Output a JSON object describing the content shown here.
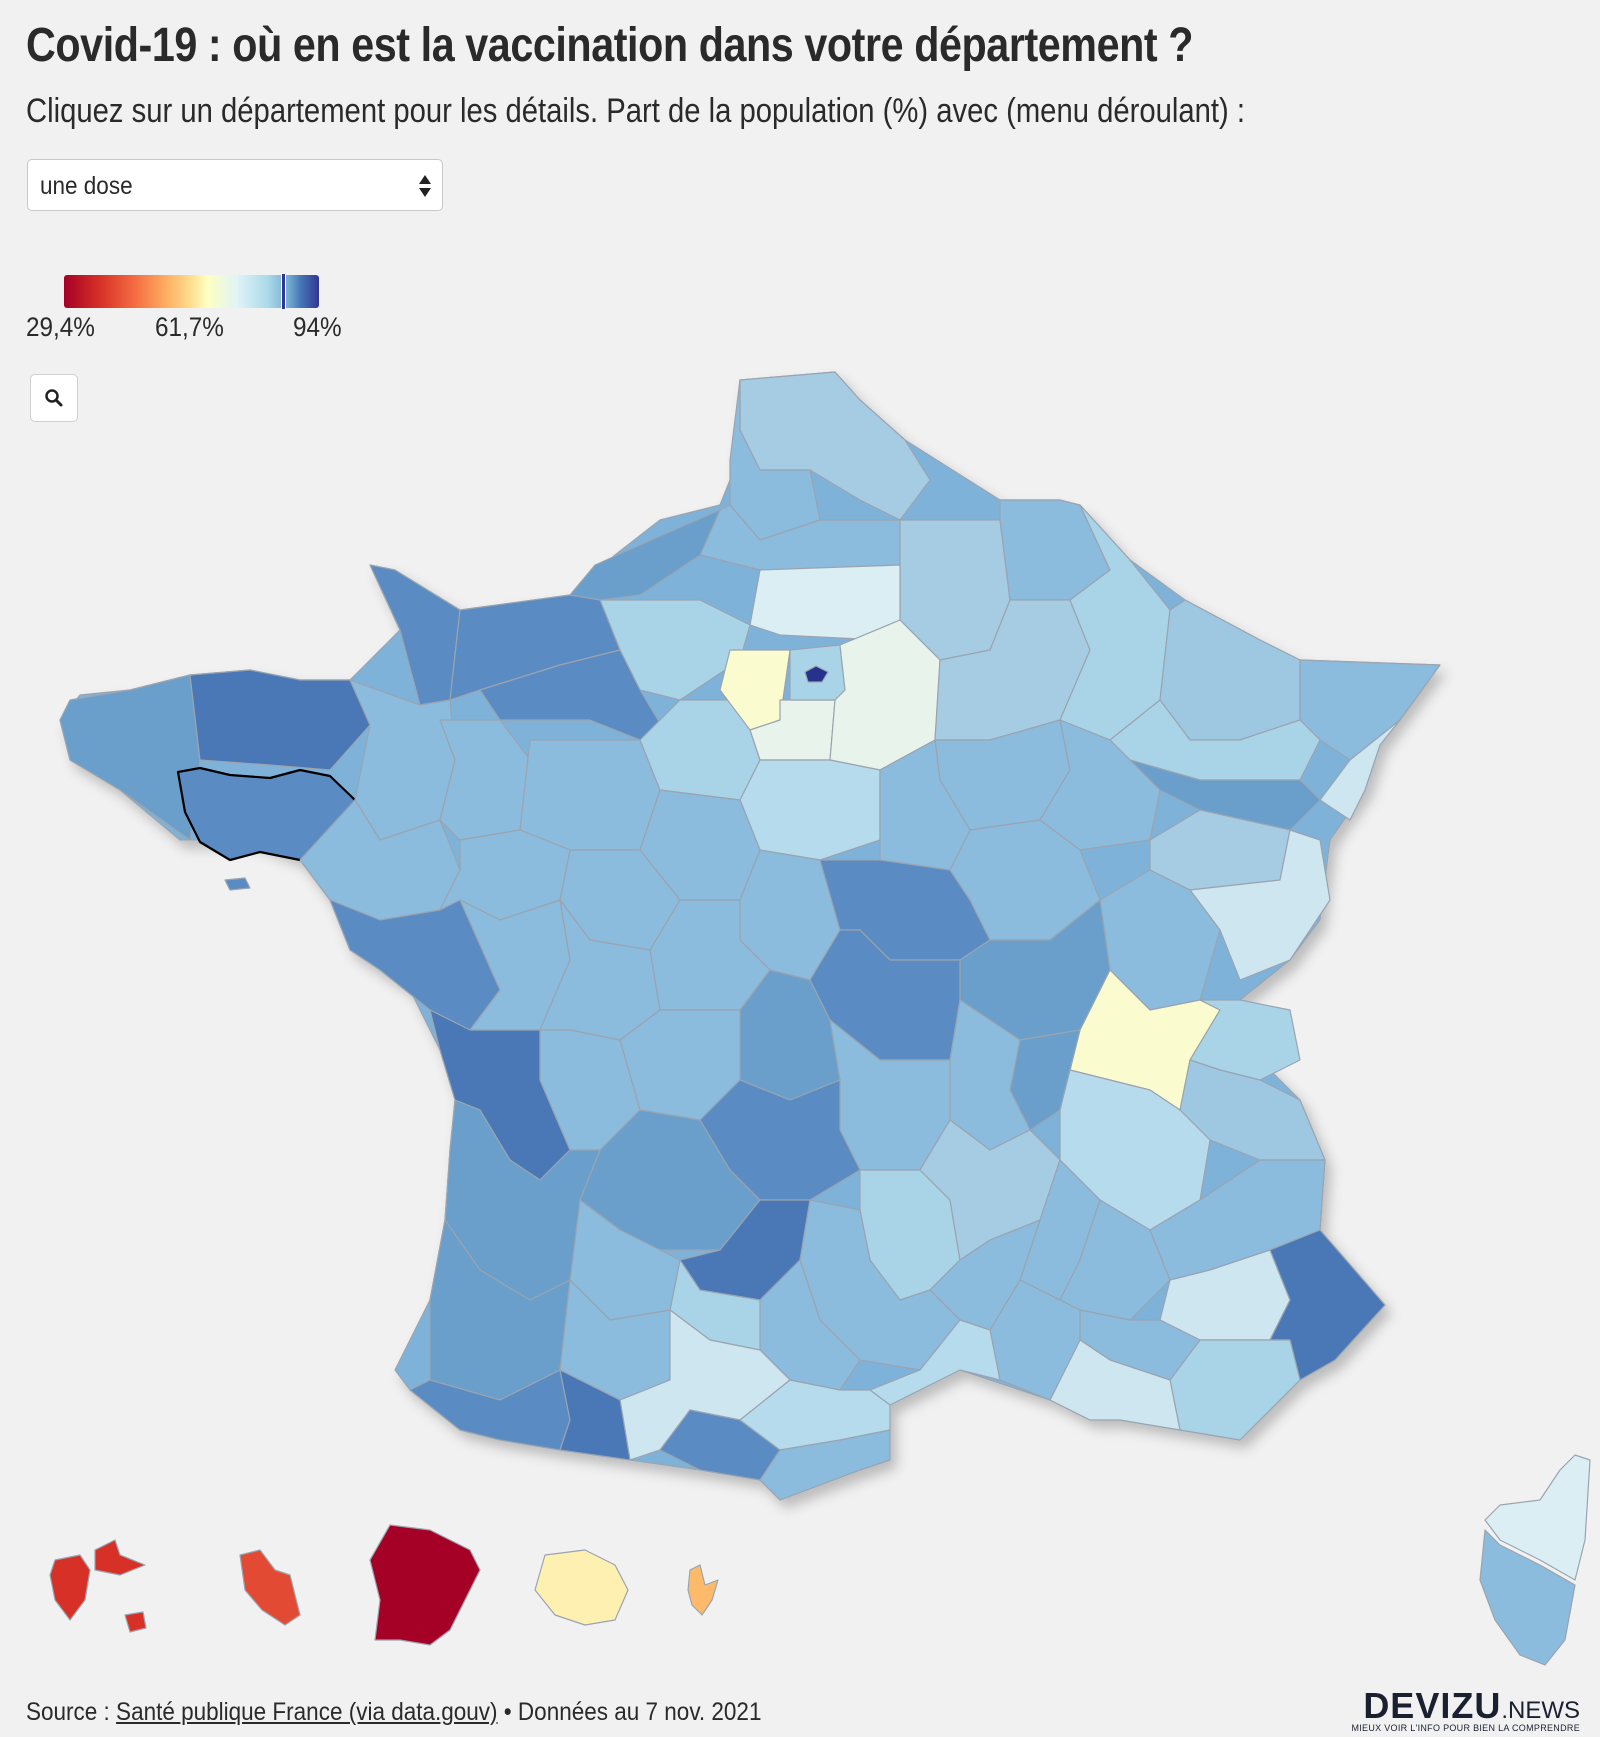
{
  "header": {
    "title": "Covid-19 : où en est la vaccination dans votre département ?",
    "subtitle": "Cliquez sur un département pour les détails. Part de la population (%) avec (menu déroulant) :"
  },
  "dropdown": {
    "selected": "une dose"
  },
  "legend": {
    "min_label": "29,4%",
    "mid_label": "61,7%",
    "max_label": "94%",
    "min_value": 29.4,
    "mid_value": 61.7,
    "max_value": 94,
    "highlight_value": 88.5,
    "colors": [
      "#a50026",
      "#d73027",
      "#f46d43",
      "#fdae61",
      "#fee090",
      "#ffffbf",
      "#e0f3f8",
      "#abd9e9",
      "#74add1",
      "#4575b4",
      "#313695"
    ]
  },
  "zoom_button": {
    "icon": "search-icon"
  },
  "map": {
    "background": "#f1f1f1",
    "border_color": "#9aa4b0",
    "selected_department_outline": "#000000",
    "overseas_colors": {
      "guadeloupe": "#d73027",
      "martinique": "#e34a33",
      "guyane": "#a50026",
      "reunion": "#fdf0b0",
      "mayotte": "#fdba6b"
    }
  },
  "footer": {
    "source_prefix": "Source : ",
    "source_link": "Santé publique France (via data.gouv)",
    "date_text": " • Données au 7 nov. 2021"
  },
  "brand": {
    "name": "DEVIZU",
    "suffix": ".NEWS",
    "tagline": "MIEUX VOIR L'INFO POUR BIEN LA COMPRENDRE"
  }
}
